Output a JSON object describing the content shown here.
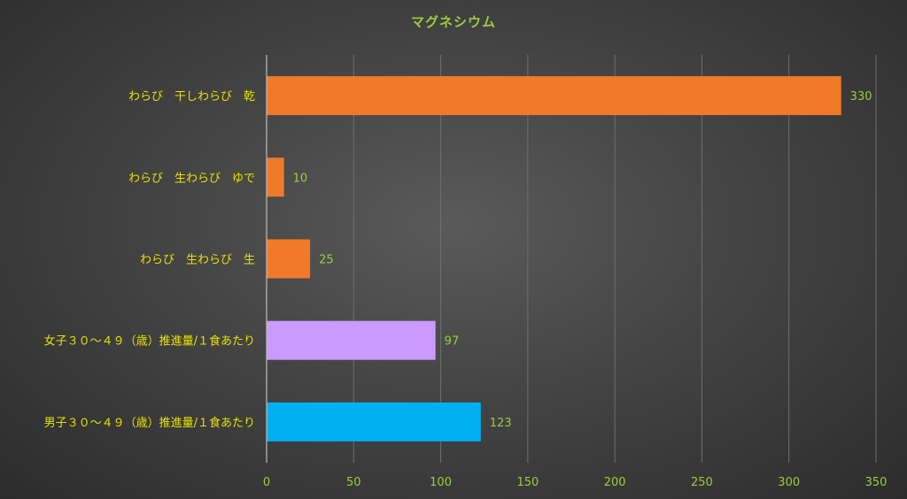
{
  "chart_data": {
    "type": "bar",
    "orientation": "horizontal",
    "title": "マグネシウム",
    "categories": [
      "わらび　干しわらび　乾",
      "わらび　生わらび　ゆで",
      "わらび　生わらび　生",
      "女子３０〜４９（歳）推進量/１食あたり",
      "男子３０〜４９（歳）推進量/１食あたり"
    ],
    "values": [
      330,
      10,
      25,
      97,
      123
    ],
    "bar_colors": [
      "#f07a2a",
      "#f07a2a",
      "#f07a2a",
      "#cc99ff",
      "#00b0f0"
    ],
    "x_ticks": [
      "0",
      "50",
      "100",
      "150",
      "200",
      "250",
      "300",
      "350"
    ],
    "xlim": [
      0,
      350
    ],
    "grid": "vertical",
    "legend": "none"
  }
}
